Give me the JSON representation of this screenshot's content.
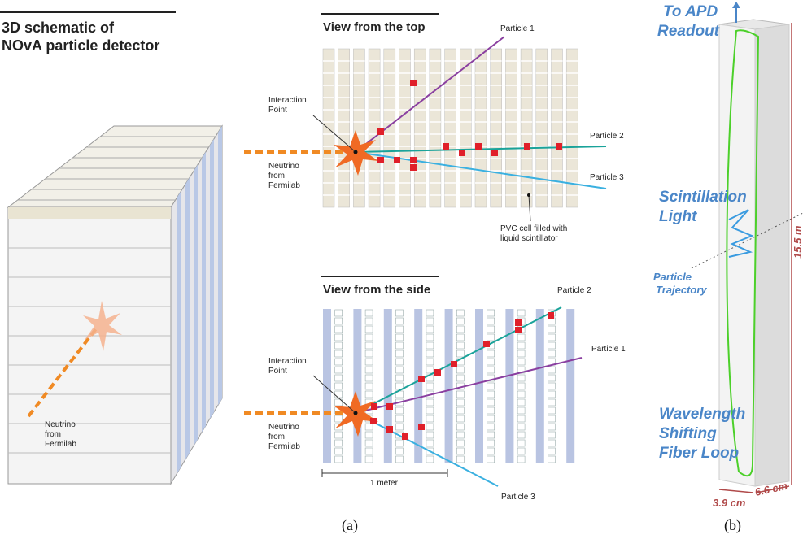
{
  "panel_a": {
    "schematic": {
      "title_lines": [
        "3D schematic of",
        "NOvA particle detector"
      ],
      "neutrino_lines": [
        "Neutrino",
        "from",
        "Fermilab"
      ]
    },
    "top_view": {
      "title": "View from the top",
      "particle_1": "Particle 1",
      "particle_2": "Particle 2",
      "particle_3": "Particle 3",
      "interaction_lines": [
        "Interaction",
        "Point"
      ],
      "neutrino_lines": [
        "Neutrino",
        "from",
        "Fermilab"
      ],
      "pvc_lines": [
        "PVC cell filled with",
        "liquid scintillator"
      ]
    },
    "side_view": {
      "title": "View from the side",
      "particle_1": "Particle 1",
      "particle_2": "Particle 2",
      "particle_3": "Particle 3",
      "interaction_lines": [
        "Interaction",
        "Point"
      ],
      "neutrino_lines": [
        "Neutrino",
        "from",
        "Fermilab"
      ],
      "scale_label": "1 meter"
    },
    "caption": "(a)"
  },
  "panel_b": {
    "readout_lines": [
      "To APD",
      "Readout"
    ],
    "scintillation_lines": [
      "Scintillation",
      "Light"
    ],
    "trajectory_lines": [
      "Particle",
      "Trajectory"
    ],
    "fiber_lines": [
      "Wavelength",
      "Shifting",
      "Fiber Loop"
    ],
    "length": "15.5 m",
    "width_1": "3.9 cm",
    "width_2": "6.6 cm",
    "caption": "(b)"
  }
}
